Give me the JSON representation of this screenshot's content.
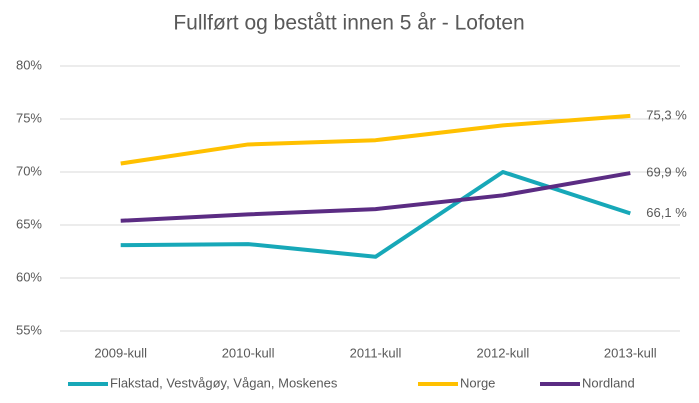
{
  "chart_data": {
    "type": "line",
    "title": "Fullført og bestått innen 5 år - Lofoten",
    "categories": [
      "2009-kull",
      "2010-kull",
      "2011-kull",
      "2012-kull",
      "2013-kull"
    ],
    "series": [
      {
        "name": "Flakstad, Vestvågøy, Vågan, Moskenes",
        "color": "#17a8b8",
        "values": [
          63.1,
          63.2,
          62.0,
          70.0,
          66.1
        ],
        "value_labels": [
          null,
          null,
          null,
          null,
          "66,1 %"
        ]
      },
      {
        "name": "Norge",
        "color": "#ffc000",
        "values": [
          70.8,
          72.6,
          73.0,
          74.4,
          75.3
        ],
        "value_labels": [
          null,
          null,
          null,
          null,
          "75,3 %"
        ]
      },
      {
        "name": "Nordland",
        "color": "#5b2c83",
        "values": [
          65.4,
          66.0,
          66.5,
          67.8,
          69.9
        ],
        "value_labels": [
          null,
          null,
          null,
          null,
          "69,9 %"
        ]
      }
    ],
    "ylim": [
      55,
      80
    ],
    "yticks": [
      {
        "value": 55,
        "label": "55%"
      },
      {
        "value": 60,
        "label": "60%"
      },
      {
        "value": 65,
        "label": "65%"
      },
      {
        "value": 70,
        "label": "70%"
      },
      {
        "value": 75,
        "label": "75%"
      },
      {
        "value": 80,
        "label": "80%"
      }
    ],
    "grid": true,
    "legend": "bottom"
  }
}
